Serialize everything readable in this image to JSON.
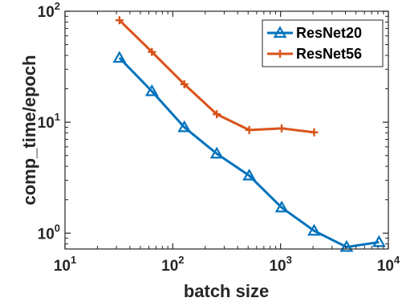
{
  "chart_data": {
    "type": "line",
    "xlabel": "batch size",
    "ylabel": "comp_time/epoch",
    "xscale": "log",
    "yscale": "log",
    "xlim": [
      10,
      10000
    ],
    "ylim": [
      0.72,
      100
    ],
    "xticks": [
      {
        "value": 10,
        "base": "10",
        "exp": "1"
      },
      {
        "value": 100,
        "base": "10",
        "exp": "2"
      },
      {
        "value": 1000,
        "base": "10",
        "exp": "3"
      },
      {
        "value": 10000,
        "base": "10",
        "exp": "4"
      }
    ],
    "yticks": [
      {
        "value": 1,
        "base": "10",
        "exp": "0"
      },
      {
        "value": 10,
        "base": "10",
        "exp": "1"
      },
      {
        "value": 100,
        "base": "10",
        "exp": "2"
      }
    ],
    "legend_position": "top-right",
    "grid": false,
    "series": [
      {
        "name": "ResNet20",
        "color": "#0072BD",
        "marker": "triangle",
        "x": [
          32,
          64,
          128,
          256,
          512,
          1024,
          2048,
          4096,
          8192
        ],
        "y": [
          38,
          19,
          9,
          5.2,
          3.3,
          1.7,
          1.05,
          0.75,
          0.83
        ]
      },
      {
        "name": "ResNet56",
        "color": "#D95319",
        "marker": "plus",
        "x": [
          32,
          64,
          128,
          256,
          512,
          1024,
          2048
        ],
        "y": [
          83,
          43,
          22,
          11.8,
          8.5,
          8.8,
          8.1
        ]
      }
    ]
  }
}
